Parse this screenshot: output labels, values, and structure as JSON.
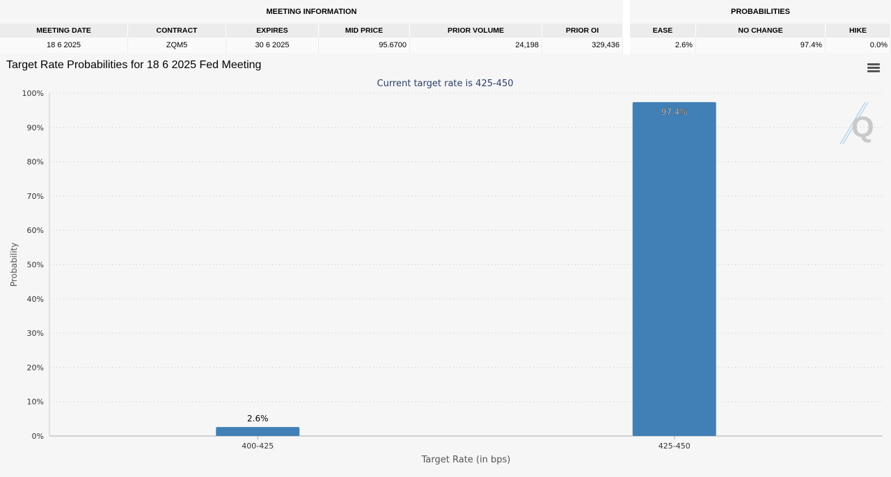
{
  "meeting_info": {
    "group_label": "MEETING INFORMATION",
    "headers": [
      "MEETING DATE",
      "CONTRACT",
      "EXPIRES",
      "MID PRICE",
      "PRIOR VOLUME",
      "PRIOR OI"
    ],
    "values": [
      "18 6 2025",
      "ZQM5",
      "30 6 2025",
      "95.6700",
      "24,198",
      "329,436"
    ]
  },
  "probabilities": {
    "group_label": "PROBABILITIES",
    "headers": [
      "EASE",
      "NO CHANGE",
      "HIKE"
    ],
    "values": [
      "2.6%",
      "97.4%",
      "0.0%"
    ]
  },
  "chart_title": "Target Rate Probabilities for 18 6 2025 Fed Meeting",
  "menu_icon": "hamburger-menu-icon",
  "colors": {
    "bar": "#4180b6",
    "grid": "#c8c8c8",
    "subtitle": "#2c3e66"
  },
  "chart_data": {
    "type": "bar",
    "subtitle": "Current target rate is 425-450",
    "categories": [
      "400-425",
      "425-450"
    ],
    "values": [
      2.6,
      97.4
    ],
    "data_labels": [
      "2.6%",
      "97.4%"
    ],
    "xlabel": "Target Rate (in bps)",
    "ylabel": "Probability",
    "ylim": [
      0,
      100
    ],
    "yticks": [
      "0%",
      "10%",
      "20%",
      "30%",
      "40%",
      "50%",
      "60%",
      "70%",
      "80%",
      "90%",
      "100%"
    ],
    "grid": true,
    "legend": "none"
  }
}
